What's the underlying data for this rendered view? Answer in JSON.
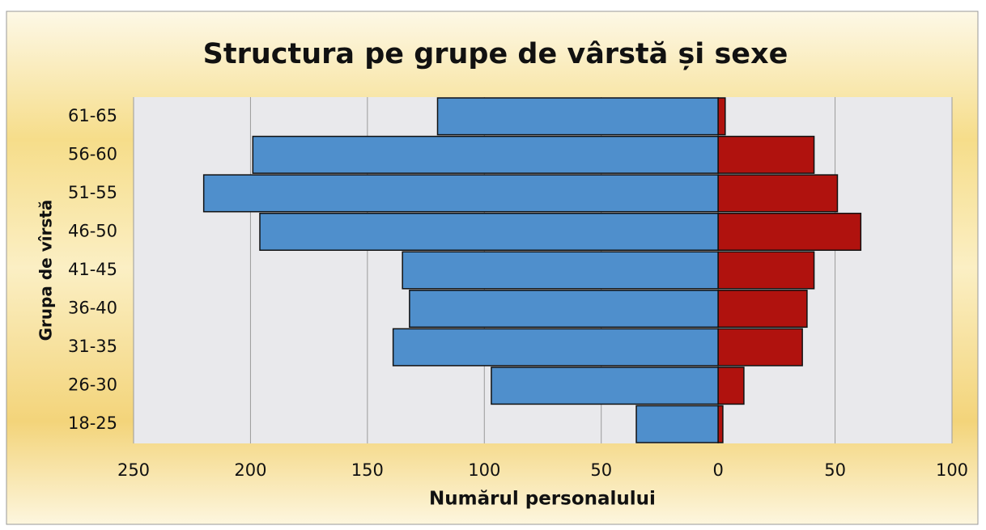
{
  "chart_data": {
    "type": "pyramid",
    "title": "Structura pe grupe de vârstă și sexe",
    "x_label": "Numărul personalului",
    "y_label": "Grupa de vîrstă",
    "categories": [
      "18-25",
      "26-30",
      "31-35",
      "36-40",
      "41-45",
      "46-50",
      "51-55",
      "56-60",
      "61-65"
    ],
    "series": [
      {
        "color": "#4f8fcc",
        "values": [
          -35,
          -97,
          -139,
          -132,
          -135,
          -196,
          -220,
          -199,
          -120
        ]
      },
      {
        "color": "#b0120e",
        "values": [
          2,
          11,
          36,
          38,
          41,
          61,
          51,
          41,
          3
        ]
      }
    ],
    "xlim": [
      -250,
      100
    ],
    "xticks": [
      {
        "value": -250,
        "label": "250"
      },
      {
        "value": -200,
        "label": "200"
      },
      {
        "value": -150,
        "label": "150"
      },
      {
        "value": -100,
        "label": "100"
      },
      {
        "value": -50,
        "label": "50"
      },
      0,
      50,
      100
    ],
    "grid": true
  }
}
